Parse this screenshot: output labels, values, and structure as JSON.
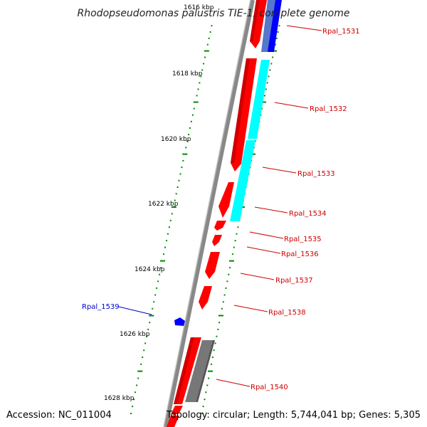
{
  "title": "Rhodopseudomonas palustris TIE-1, complete genome",
  "accession_text": "Accession: NC_011004",
  "summary_text": "Topology: circular; Length: 5,744,041 bp; Genes: 5,305",
  "colors": {
    "forward_gene": "#ff0000",
    "reverse_gene_blue": "#0000ff",
    "reverse_gene_cyan": "#00ffff",
    "reverse_gene_gray": "#777777",
    "backbone": "#888888",
    "tick": "#008800",
    "label_red": "#cc0000",
    "label_blue": "#0000cc"
  },
  "kbp_ticks": [
    {
      "label": "1616 kbp"
    },
    {
      "label": "1618 kbp"
    },
    {
      "label": "1620 kbp"
    },
    {
      "label": "1622 kbp"
    },
    {
      "label": "1624 kbp"
    },
    {
      "label": "1626 kbp"
    },
    {
      "label": "1628 kbp"
    }
  ],
  "genes": [
    {
      "name": "Rpal_1531",
      "color": "label_red"
    },
    {
      "name": "Rpal_1532",
      "color": "label_red"
    },
    {
      "name": "Rpal_1533",
      "color": "label_red"
    },
    {
      "name": "Rpal_1534",
      "color": "label_red"
    },
    {
      "name": "Rpal_1535",
      "color": "label_red"
    },
    {
      "name": "Rpal_1536",
      "color": "label_red"
    },
    {
      "name": "Rpal_1537",
      "color": "label_red"
    },
    {
      "name": "Rpal_1538",
      "color": "label_red"
    },
    {
      "name": "Rpal_1539",
      "color": "label_blue"
    },
    {
      "name": "Rpal_1540",
      "color": "label_red"
    }
  ]
}
